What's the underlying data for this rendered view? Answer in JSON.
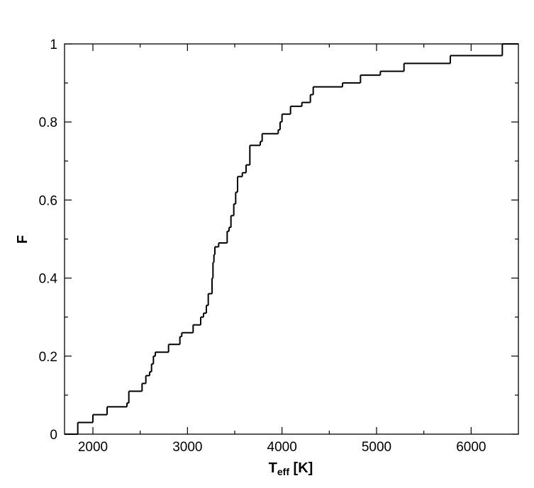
{
  "chart_data": {
    "type": "step",
    "x_label": {
      "main": "T",
      "sub": "eff",
      "rest": " [K]"
    },
    "y_label": "F",
    "x": [
      1700,
      1840,
      2000,
      2150,
      2360,
      2380,
      2520,
      2560,
      2600,
      2620,
      2640,
      2660,
      2800,
      2920,
      2940,
      3060,
      3140,
      3170,
      3200,
      3220,
      3260,
      3270,
      3280,
      3290,
      3330,
      3420,
      3440,
      3460,
      3490,
      3510,
      3530,
      3580,
      3620,
      3660,
      3770,
      3790,
      3960,
      3980,
      4000,
      4090,
      4210,
      4300,
      4330,
      4640,
      4830,
      5040,
      5290,
      5780,
      6330,
      6500
    ],
    "values": [
      0,
      0.03,
      0.05,
      0.07,
      0.08,
      0.11,
      0.13,
      0.15,
      0.16,
      0.18,
      0.2,
      0.21,
      0.23,
      0.25,
      0.26,
      0.28,
      0.3,
      0.31,
      0.33,
      0.36,
      0.4,
      0.44,
      0.46,
      0.48,
      0.49,
      0.52,
      0.53,
      0.56,
      0.59,
      0.62,
      0.66,
      0.67,
      0.69,
      0.74,
      0.75,
      0.77,
      0.78,
      0.8,
      0.82,
      0.84,
      0.85,
      0.87,
      0.89,
      0.9,
      0.92,
      0.93,
      0.95,
      0.97,
      1,
      1
    ],
    "color": "#000000",
    "xlim": [
      1700,
      6500
    ],
    "xticks": [
      2000,
      3000,
      4000,
      5000,
      6000
    ],
    "ylim": [
      0,
      1
    ],
    "yticks": [
      0,
      0.2,
      0.4,
      0.6,
      0.8,
      1
    ]
  }
}
